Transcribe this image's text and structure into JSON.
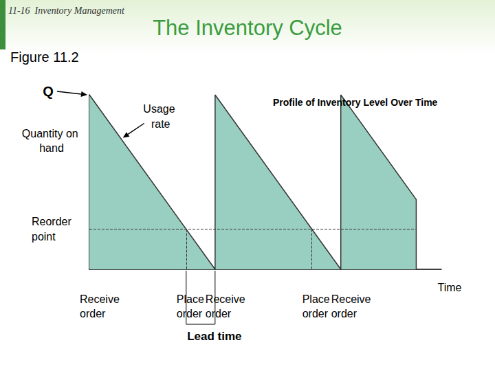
{
  "chart_data": {
    "type": "line",
    "header": "11-16  Inventory Management",
    "title": "The Inventory Cycle",
    "figure_label": "Figure 11.2",
    "subtitle": "Profile of Inventory Level Over Time",
    "xlabel": "Time",
    "x": [
      0,
      10,
      10,
      20,
      20,
      26,
      26
    ],
    "values": [
      100,
      0,
      100,
      0,
      100,
      40,
      0
    ],
    "color": "#99cfc0",
    "xlim": [
      0,
      28
    ],
    "ylim": [
      0,
      100
    ],
    "grid": false,
    "tick_labels": false,
    "quantity": {
      "symbol": "Q",
      "label": "Quantity on hand",
      "value": 100
    },
    "usage_rate": {
      "label": "Usage rate",
      "x": 2.5,
      "value": 75
    },
    "reorder_point": {
      "label": "Reorder point",
      "value": 23,
      "x_end": 26,
      "crossings": [
        7.7,
        17.7
      ]
    },
    "events": [
      {
        "label": "Receive order",
        "x": 0
      },
      {
        "label": "Place order",
        "x": 7.7
      },
      {
        "label": "Receive order",
        "x": 10
      },
      {
        "label": "Place order",
        "x": 17.7
      },
      {
        "label": "Receive order",
        "x": 20
      }
    ],
    "lead_time": {
      "label": "Lead time",
      "from": 7.7,
      "to": 10
    }
  }
}
